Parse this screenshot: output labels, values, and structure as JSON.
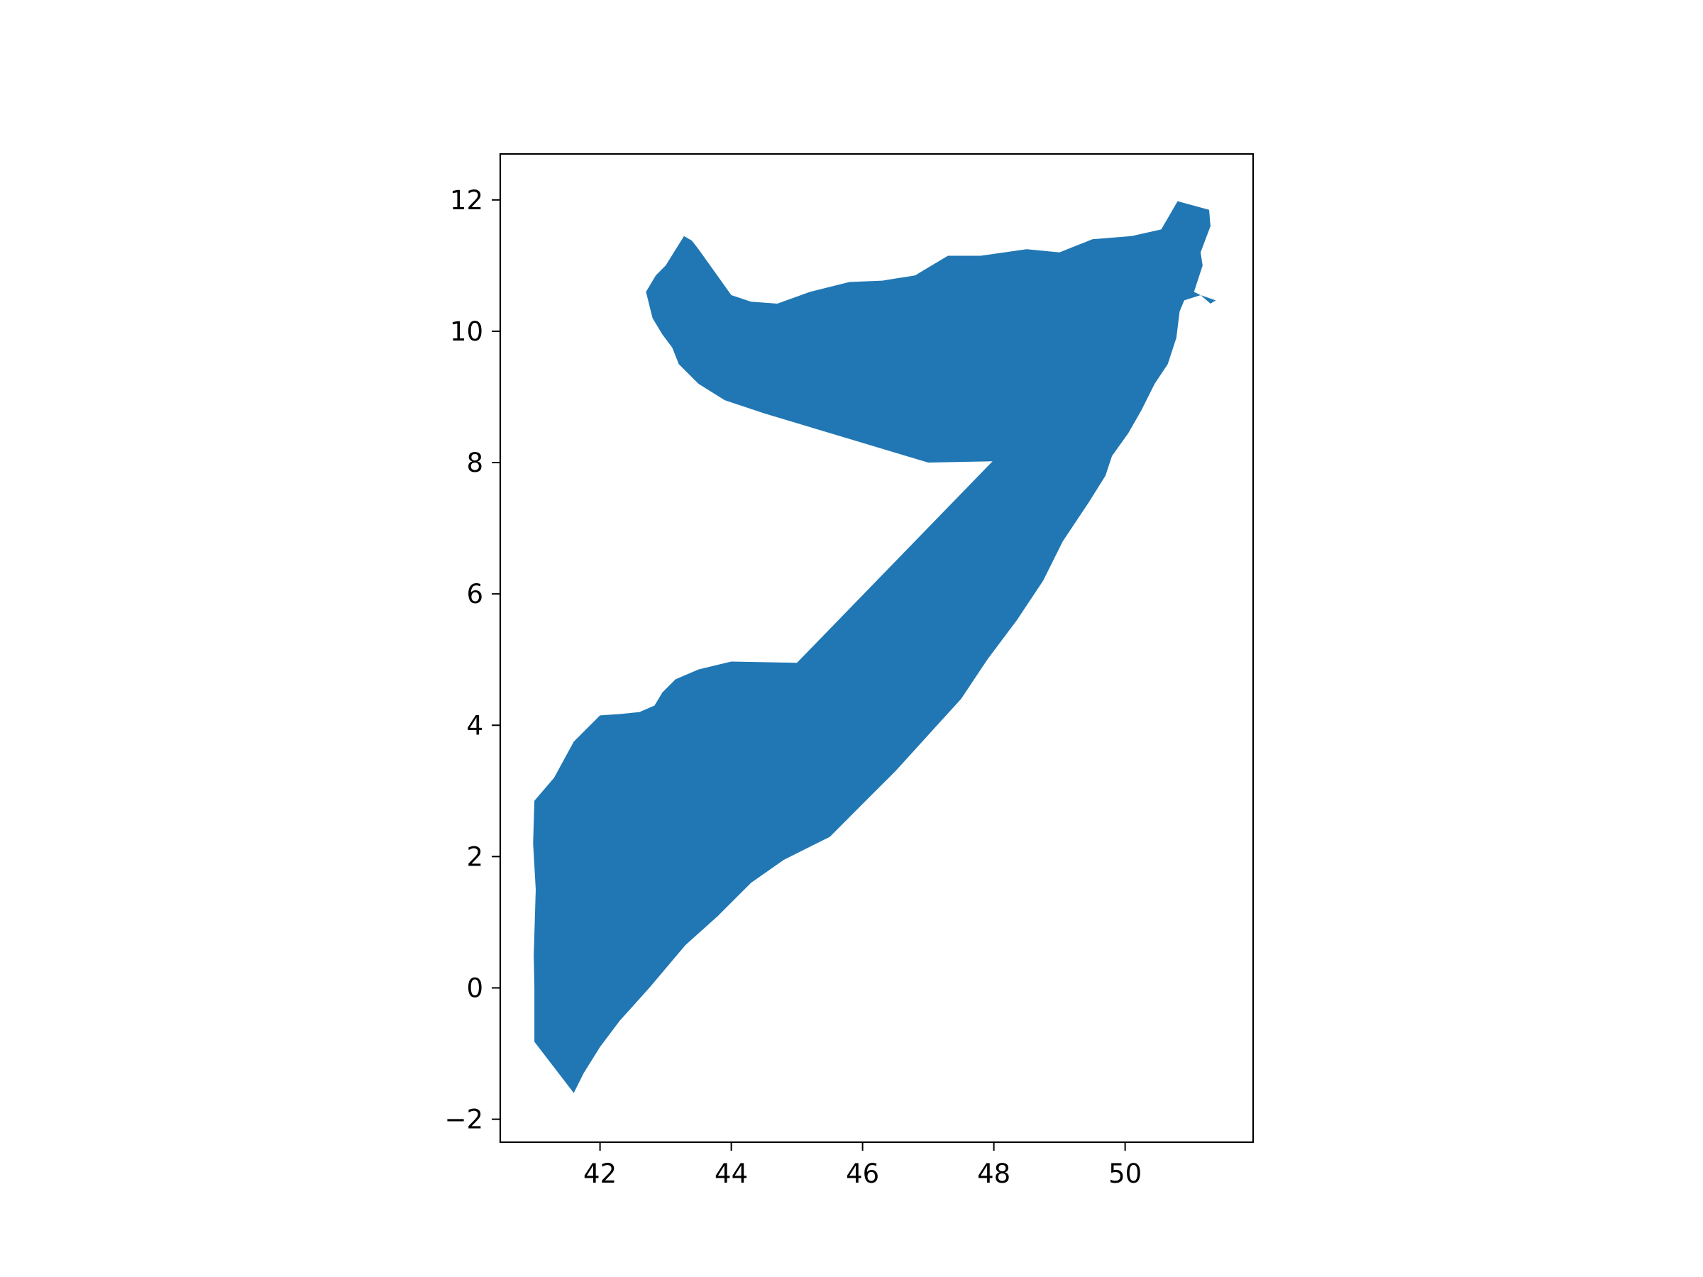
{
  "chart_data": {
    "type": "map",
    "title": "",
    "xlabel": "",
    "ylabel": "",
    "xlim": [
      40.48,
      51.95
    ],
    "ylim": [
      -2.35,
      12.7
    ],
    "grid": false,
    "legend": null,
    "fill_color": "#2077b4",
    "x_ticks": [
      {
        "value": 42,
        "label": "42"
      },
      {
        "value": 44,
        "label": "44"
      },
      {
        "value": 46,
        "label": "46"
      },
      {
        "value": 48,
        "label": "48"
      },
      {
        "value": 50,
        "label": "50"
      }
    ],
    "y_ticks": [
      {
        "value": -2,
        "label": "−2"
      },
      {
        "value": 0,
        "label": "0"
      },
      {
        "value": 2,
        "label": "2"
      },
      {
        "value": 4,
        "label": "4"
      },
      {
        "value": 6,
        "label": "6"
      },
      {
        "value": 8,
        "label": "8"
      },
      {
        "value": 10,
        "label": "10"
      },
      {
        "value": 12,
        "label": "12"
      }
    ],
    "shapes": [
      {
        "name": "main",
        "coords": [
          [
            41.0,
            -0.82
          ],
          [
            41.6,
            -1.6
          ],
          [
            41.75,
            -1.3
          ],
          [
            42.0,
            -0.9
          ],
          [
            42.3,
            -0.5
          ],
          [
            42.75,
            0.0
          ],
          [
            43.3,
            0.65
          ],
          [
            43.8,
            1.1
          ],
          [
            44.3,
            1.6
          ],
          [
            44.8,
            1.95
          ],
          [
            45.5,
            2.3
          ],
          [
            46.0,
            2.8
          ],
          [
            46.5,
            3.3
          ],
          [
            47.0,
            3.85
          ],
          [
            47.5,
            4.4
          ],
          [
            47.9,
            5.0
          ],
          [
            48.35,
            5.6
          ],
          [
            48.75,
            6.2
          ],
          [
            49.05,
            6.8
          ],
          [
            49.45,
            7.4
          ],
          [
            49.7,
            7.8
          ],
          [
            49.8,
            8.1
          ],
          [
            50.05,
            8.45
          ],
          [
            50.25,
            8.8
          ],
          [
            50.45,
            9.2
          ],
          [
            50.65,
            9.5
          ],
          [
            50.78,
            9.9
          ],
          [
            50.83,
            10.3
          ],
          [
            50.9,
            10.47
          ],
          [
            51.15,
            10.55
          ],
          [
            51.38,
            10.47
          ],
          [
            51.3,
            10.42
          ],
          [
            51.15,
            10.55
          ],
          [
            51.05,
            10.6
          ],
          [
            51.18,
            11.0
          ],
          [
            51.15,
            11.2
          ],
          [
            51.3,
            11.6
          ],
          [
            51.28,
            11.85
          ],
          [
            50.8,
            11.98
          ],
          [
            50.55,
            11.55
          ],
          [
            50.1,
            11.45
          ],
          [
            49.5,
            11.4
          ],
          [
            49.0,
            11.2
          ],
          [
            48.5,
            11.25
          ],
          [
            47.8,
            11.15
          ],
          [
            47.3,
            11.15
          ],
          [
            46.8,
            10.85
          ],
          [
            46.3,
            10.77
          ],
          [
            45.8,
            10.75
          ],
          [
            45.2,
            10.6
          ],
          [
            44.7,
            10.42
          ],
          [
            44.3,
            10.45
          ],
          [
            44.0,
            10.55
          ],
          [
            43.75,
            10.9
          ],
          [
            43.5,
            11.25
          ],
          [
            43.4,
            11.38
          ],
          [
            43.28,
            11.45
          ],
          [
            43.0,
            11.0
          ],
          [
            42.85,
            10.85
          ],
          [
            42.7,
            10.6
          ],
          [
            42.8,
            10.2
          ],
          [
            42.95,
            9.95
          ],
          [
            43.1,
            9.75
          ],
          [
            43.2,
            9.5
          ],
          [
            43.5,
            9.2
          ],
          [
            43.9,
            8.95
          ],
          [
            44.5,
            8.75
          ],
          [
            46.0,
            8.3
          ],
          [
            47.0,
            8.0
          ],
          [
            47.98,
            8.02
          ],
          [
            45.0,
            4.95
          ],
          [
            44.0,
            4.97
          ],
          [
            43.5,
            4.85
          ],
          [
            43.15,
            4.7
          ],
          [
            42.95,
            4.5
          ],
          [
            42.83,
            4.3
          ],
          [
            42.6,
            4.2
          ],
          [
            42.3,
            4.17
          ],
          [
            42.0,
            4.15
          ],
          [
            41.6,
            3.75
          ],
          [
            41.3,
            3.2
          ],
          [
            41.0,
            2.85
          ],
          [
            40.98,
            2.2
          ],
          [
            41.02,
            1.5
          ],
          [
            40.99,
            0.5
          ],
          [
            41.0,
            0.0
          ],
          [
            41.0,
            -0.82
          ]
        ]
      }
    ]
  }
}
